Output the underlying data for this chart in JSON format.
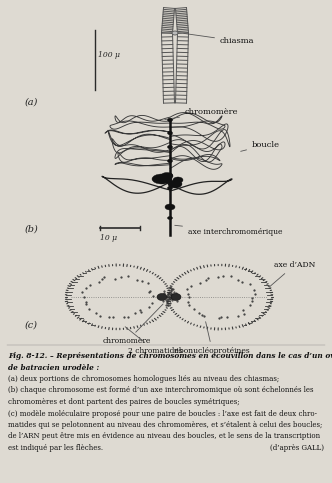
{
  "caption_line1": "Fig. 8-12. – Représentations de chromosomes en écouvillon dans le cas d’un ovocyte",
  "caption_line2": "de batracien urodèle :",
  "caption_line3": "(a) deux portions de chromosomes homologues liés au niveau des chiasmas;",
  "caption_line4": "(b) chaque chromosome est formé d’un axe interchromomique où sont échelonnés les",
  "caption_line5": "chromomères et dont partent des paires de boucles symétriques;",
  "caption_line6": "(c) modèle moléculaire proposé pour une paire de boucles : l’axe est fait de deux chro-",
  "caption_line7": "matides qui se pelotonnent au niveau des chromomères, et s’étalent à celui des boucles;",
  "caption_line8": "de l’ARN peut être mis en évidence au niveau des boucles, et le sens de la transcription",
  "caption_line9": "est indiqué par les flèches.",
  "caption_line9b": "(d’après GALL)",
  "bg_color": "#dedad2",
  "text_color": "#1a1a1a",
  "label_a": "(a)",
  "label_b": "(b)",
  "label_c": "(c)",
  "anno_chiasma": "chiasma",
  "anno_chromomere_b": "chromomère",
  "anno_boucle": "boucle",
  "anno_axe_b": "axe interchromomérique",
  "anno_axe_adn": "axe d’ADN",
  "anno_chromomere_c": "chromomère",
  "anno_2chromatides": "2 chromatides",
  "anno_ribonucleoprotines": "ribonucléoprotéines",
  "scale_a": "100 μ",
  "scale_b": "10 μ"
}
